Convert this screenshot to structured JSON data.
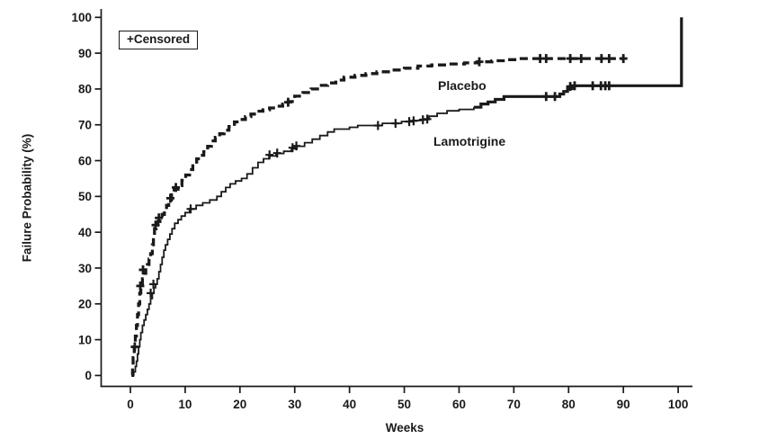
{
  "figure": {
    "background": "#ffffff",
    "ink_color": "#1a1a1a"
  },
  "chart_data": {
    "type": "line",
    "subtype": "kaplan_meier_failure_step",
    "title": "",
    "xlabel": "Weeks",
    "ylabel": "Failure Probability (%)",
    "xlim": [
      0,
      100
    ],
    "ylim": [
      0,
      100
    ],
    "x_ticks": [
      0,
      10,
      20,
      30,
      40,
      50,
      60,
      70,
      80,
      90,
      100
    ],
    "y_ticks": [
      0,
      10,
      20,
      30,
      40,
      50,
      60,
      70,
      80,
      90,
      100
    ],
    "grid": false,
    "legend": {
      "label": "+Censored",
      "position": "top-left-inside"
    },
    "series": [
      {
        "name": "Placebo",
        "line_style": "dashed",
        "dash": [
          9,
          5
        ],
        "stroke_width": 3.3,
        "censor_stroke": 2.8,
        "annotation": {
          "text": "Placebo"
        },
        "points": [
          [
            0.2,
            0
          ],
          [
            0.4,
            2
          ],
          [
            0.5,
            5
          ],
          [
            0.7,
            8
          ],
          [
            0.9,
            11
          ],
          [
            1.1,
            14
          ],
          [
            1.3,
            17
          ],
          [
            1.5,
            20
          ],
          [
            1.7,
            23
          ],
          [
            1.9,
            25
          ],
          [
            2.2,
            27
          ],
          [
            2.5,
            28.5
          ],
          [
            2.8,
            30
          ],
          [
            3.1,
            31
          ],
          [
            3.4,
            32.5
          ],
          [
            3.7,
            34
          ],
          [
            4.0,
            36.5
          ],
          [
            4.2,
            39
          ],
          [
            4.4,
            41
          ],
          [
            4.7,
            42
          ],
          [
            5.0,
            43
          ],
          [
            5.4,
            44
          ],
          [
            5.8,
            45
          ],
          [
            6.2,
            46
          ],
          [
            6.6,
            47.5
          ],
          [
            7.0,
            49
          ],
          [
            7.5,
            51
          ],
          [
            8.0,
            52
          ],
          [
            8.7,
            53
          ],
          [
            9.4,
            54.5
          ],
          [
            10.1,
            56
          ],
          [
            10.8,
            57.5
          ],
          [
            11.4,
            59
          ],
          [
            12.1,
            60.5
          ],
          [
            12.8,
            61.5
          ],
          [
            13.4,
            62.5
          ],
          [
            14.1,
            64
          ],
          [
            14.8,
            65.5
          ],
          [
            15.5,
            66.5
          ],
          [
            16.3,
            67.5
          ],
          [
            17.1,
            68.5
          ],
          [
            18.0,
            69.5
          ],
          [
            19.0,
            70.8
          ],
          [
            20.0,
            71.5
          ],
          [
            21.0,
            72.3
          ],
          [
            22.0,
            73
          ],
          [
            23.0,
            73.8
          ],
          [
            24.2,
            74.2
          ],
          [
            25.4,
            74.7
          ],
          [
            26.6,
            75.2
          ],
          [
            27.8,
            75.8
          ],
          [
            28.8,
            76.5
          ],
          [
            30.0,
            78
          ],
          [
            31.5,
            79
          ],
          [
            33.0,
            80
          ],
          [
            34.5,
            81
          ],
          [
            36.0,
            81.7
          ],
          [
            37.5,
            82.5
          ],
          [
            39.0,
            83.3
          ],
          [
            41.0,
            83.8
          ],
          [
            43.0,
            84.3
          ],
          [
            45.0,
            84.8
          ],
          [
            47.5,
            85.3
          ],
          [
            50.0,
            85.8
          ],
          [
            52.5,
            86.4
          ],
          [
            55.0,
            86.7
          ],
          [
            58.0,
            87
          ],
          [
            61.0,
            87.3
          ],
          [
            63.5,
            87.6
          ],
          [
            66.0,
            87.9
          ],
          [
            68.5,
            88.2
          ],
          [
            70.5,
            88.5
          ],
          [
            90.0,
            88.5
          ]
        ],
        "censored": [
          [
            0.8,
            8
          ],
          [
            1.8,
            25
          ],
          [
            2.3,
            29.5
          ],
          [
            4.6,
            42
          ],
          [
            5.2,
            44
          ],
          [
            7.3,
            49.5
          ],
          [
            8.3,
            52.5
          ],
          [
            28.8,
            76.3
          ],
          [
            63.7,
            87.6
          ],
          [
            74.8,
            88.5
          ],
          [
            75.9,
            88.5
          ],
          [
            80.3,
            88.5
          ],
          [
            82.3,
            88.5
          ],
          [
            86.0,
            88.5
          ],
          [
            87.4,
            88.5
          ],
          [
            90.0,
            88.5
          ]
        ]
      },
      {
        "name": "Lamotrigine",
        "line_style": "solid",
        "dash": null,
        "stroke_width": 1.8,
        "bold_from_week": 62.7,
        "bold_width": 3.2,
        "censor_stroke": 2.2,
        "annotation": {
          "text": "Lamotrigine"
        },
        "points": [
          [
            0.3,
            0
          ],
          [
            0.6,
            1
          ],
          [
            0.9,
            2.5
          ],
          [
            1.1,
            4
          ],
          [
            1.3,
            6
          ],
          [
            1.5,
            8
          ],
          [
            1.7,
            10
          ],
          [
            1.9,
            12
          ],
          [
            2.2,
            14
          ],
          [
            2.5,
            15.5
          ],
          [
            2.8,
            17
          ],
          [
            3.1,
            18.5
          ],
          [
            3.4,
            20
          ],
          [
            3.7,
            21.5
          ],
          [
            4.0,
            23
          ],
          [
            4.3,
            24.5
          ],
          [
            4.6,
            25.5
          ],
          [
            4.9,
            27
          ],
          [
            5.2,
            29
          ],
          [
            5.5,
            31
          ],
          [
            5.8,
            33
          ],
          [
            6.1,
            35
          ],
          [
            6.4,
            36.5
          ],
          [
            6.8,
            38
          ],
          [
            7.2,
            39.5
          ],
          [
            7.6,
            41
          ],
          [
            8.1,
            42.5
          ],
          [
            8.7,
            43.5
          ],
          [
            9.3,
            44.5
          ],
          [
            10.0,
            45.5
          ],
          [
            10.8,
            46.5
          ],
          [
            12.0,
            47.5
          ],
          [
            13.2,
            48.2
          ],
          [
            14.5,
            49
          ],
          [
            15.8,
            50
          ],
          [
            16.6,
            51.3
          ],
          [
            17.4,
            52.5
          ],
          [
            18.2,
            53.5
          ],
          [
            19.2,
            54.3
          ],
          [
            20.3,
            55
          ],
          [
            21.3,
            56.3
          ],
          [
            22.3,
            58
          ],
          [
            23.3,
            59.5
          ],
          [
            24.3,
            60.5
          ],
          [
            25.3,
            61.3
          ],
          [
            26.6,
            62
          ],
          [
            28.0,
            62.6
          ],
          [
            29.4,
            63.3
          ],
          [
            30.4,
            64
          ],
          [
            31.8,
            65
          ],
          [
            33.2,
            66
          ],
          [
            34.6,
            67
          ],
          [
            36.0,
            68
          ],
          [
            37.2,
            68.8
          ],
          [
            40.0,
            69.3
          ],
          [
            41.5,
            69.8
          ],
          [
            46.0,
            70.4
          ],
          [
            49.5,
            70.9
          ],
          [
            51.5,
            71.2
          ],
          [
            53.0,
            71.5
          ],
          [
            54.5,
            72.4
          ],
          [
            56.0,
            73.2
          ],
          [
            57.8,
            73.9
          ],
          [
            60.0,
            74.3
          ],
          [
            62.7,
            74.9
          ],
          [
            64.0,
            75.8
          ],
          [
            65.3,
            76.4
          ],
          [
            66.6,
            77.1
          ],
          [
            68.2,
            77.9
          ],
          [
            78.4,
            78.6
          ],
          [
            79.1,
            79.3
          ],
          [
            79.8,
            80.1
          ],
          [
            80.6,
            80.9
          ],
          [
            100.5,
            80.9
          ],
          [
            100.6,
            100
          ]
        ],
        "censored": [
          [
            3.7,
            23
          ],
          [
            4.2,
            25.5
          ],
          [
            11.0,
            46.5
          ],
          [
            25.4,
            61.6
          ],
          [
            26.8,
            62.1
          ],
          [
            29.6,
            63.6
          ],
          [
            30.3,
            64.1
          ],
          [
            45.2,
            69.8
          ],
          [
            48.4,
            70.4
          ],
          [
            50.9,
            70.9
          ],
          [
            51.7,
            71.1
          ],
          [
            53.4,
            71.4
          ],
          [
            54.2,
            71.6
          ],
          [
            75.9,
            77.9
          ],
          [
            77.5,
            77.9
          ],
          [
            80.3,
            80.7
          ],
          [
            81.1,
            80.9
          ],
          [
            84.4,
            80.9
          ],
          [
            85.9,
            80.9
          ],
          [
            86.7,
            80.9
          ],
          [
            87.4,
            80.9
          ]
        ]
      }
    ]
  }
}
